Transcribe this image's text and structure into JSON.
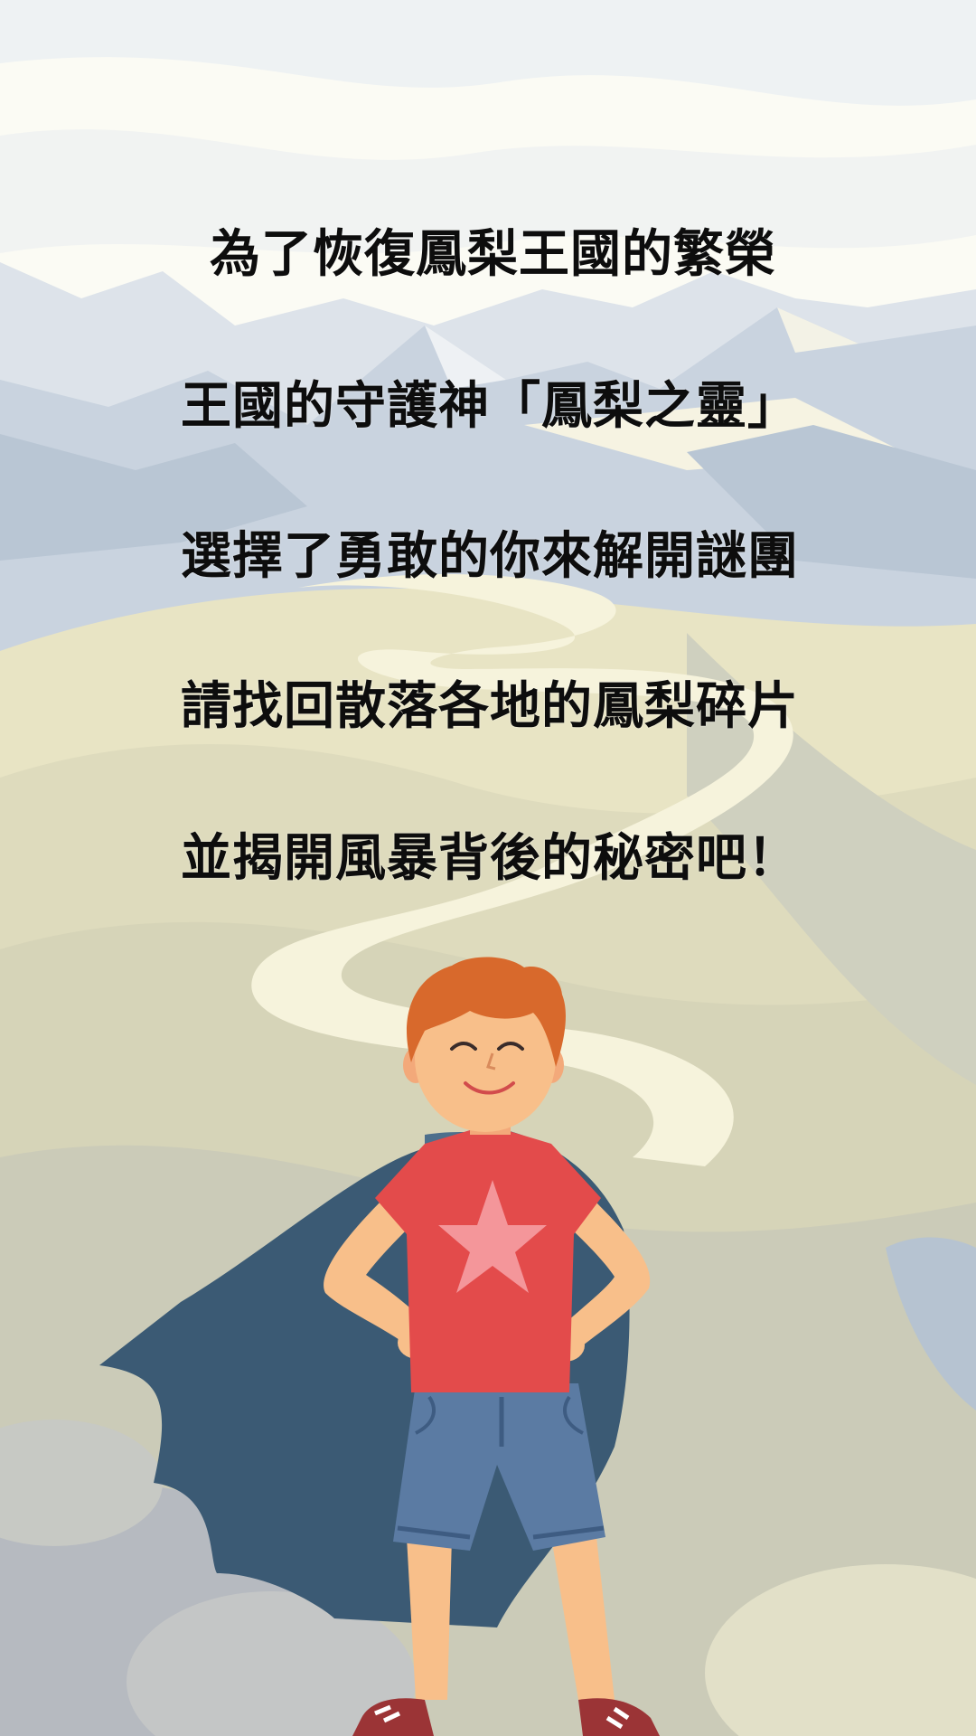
{
  "story": {
    "lines": [
      "為了恢復鳳梨王國的繁榮",
      "王國的守護神「鳳梨之靈」",
      "選擇了勇敢的你來解開謎團",
      "請找回散落各地的鳳梨碎片",
      "並揭開風暴背後的秘密吧！"
    ]
  },
  "colors": {
    "sky": "#fbfbf4",
    "mountain": "#c9d3df",
    "hill": "#e8e4c4",
    "path": "#f6f3dc",
    "cape": "#3b5a74",
    "shirt": "#e34b4b",
    "star": "#f4969a",
    "shorts": "#5b7ba3",
    "skin": "#f8bf8a",
    "hair": "#d8692c",
    "shoe": "#9b3436"
  },
  "scene": {
    "background": "mountain-landscape-illustration",
    "character": "caped-boy-hero-illustration"
  }
}
